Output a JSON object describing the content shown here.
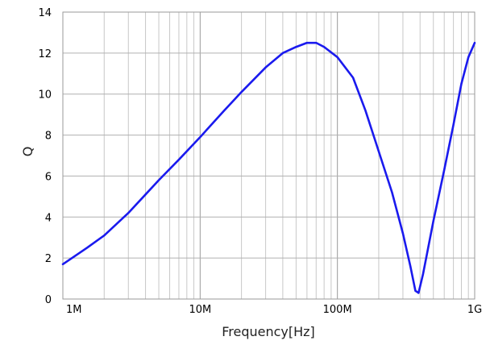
{
  "chart_data": {
    "type": "line",
    "title": "",
    "xlabel": "Frequency[Hz]",
    "ylabel": "Q",
    "x_scale": "log",
    "xlim": [
      1000000,
      1000000000
    ],
    "ylim": [
      0,
      14
    ],
    "x_ticks": [
      1000000,
      10000000,
      100000000,
      1000000000
    ],
    "x_tick_labels": [
      "1M",
      "10M",
      "100M",
      "1G"
    ],
    "y_ticks": [
      0,
      2,
      4,
      6,
      8,
      10,
      12,
      14
    ],
    "y_tick_labels": [
      "0",
      "2",
      "4",
      "6",
      "8",
      "10",
      "12",
      "14"
    ],
    "grid": true,
    "series": [
      {
        "color": "#1a1aee",
        "x": [
          1000000,
          1500000,
          2000000,
          3000000,
          4000000,
          5000000,
          7000000,
          10000000,
          15000000,
          20000000,
          30000000,
          40000000,
          50000000,
          60000000,
          70000000,
          80000000,
          100000000,
          130000000,
          160000000,
          200000000,
          250000000,
          300000000,
          340000000,
          370000000,
          390000000,
          420000000,
          500000000,
          600000000,
          700000000,
          800000000,
          900000000,
          1000000000
        ],
        "y": [
          1.7,
          2.5,
          3.1,
          4.2,
          5.1,
          5.8,
          6.8,
          7.9,
          9.2,
          10.1,
          11.3,
          12.0,
          12.3,
          12.5,
          12.5,
          12.3,
          11.8,
          10.8,
          9.2,
          7.2,
          5.2,
          3.2,
          1.6,
          0.4,
          0.3,
          1.2,
          3.8,
          6.3,
          8.5,
          10.5,
          11.8,
          12.5
        ]
      }
    ]
  }
}
